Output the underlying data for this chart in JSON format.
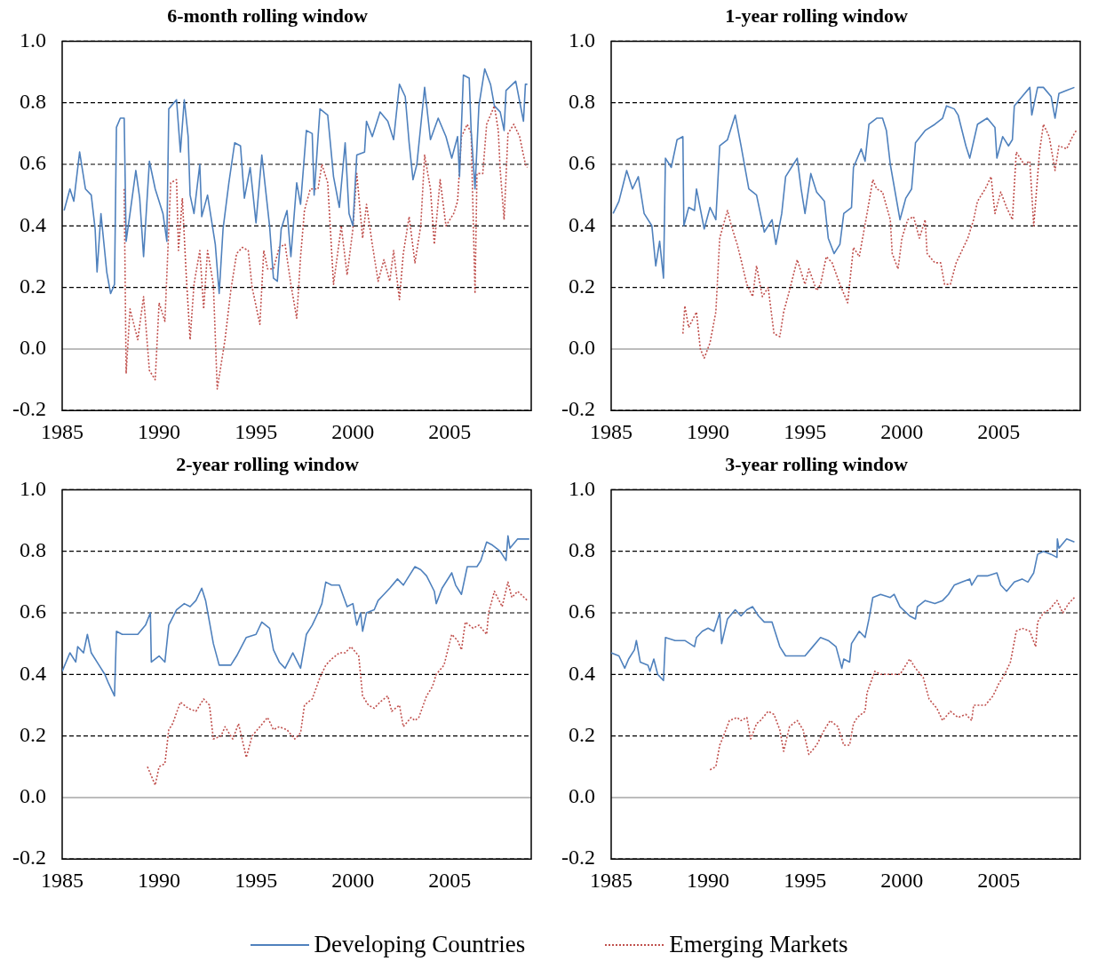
{
  "chart_data": [
    {
      "type": "line",
      "title": "6-month rolling window",
      "xlim": [
        1985,
        2009.2
      ],
      "xticks": [
        1985,
        1990,
        1995,
        2000,
        2005
      ],
      "ylim": [
        -0.2,
        1.0
      ],
      "yticks": [
        {
          "value": -0.2,
          "label": "-0.2"
        },
        {
          "value": 0,
          "label": "0.0"
        },
        {
          "value": 0.2,
          "label": "0.2"
        },
        {
          "value": 0.4,
          "label": "0.4"
        },
        {
          "value": 0.6,
          "label": "0.6"
        },
        {
          "value": 0.8,
          "label": "0.8"
        },
        {
          "value": 1,
          "label": "1.0"
        }
      ],
      "grid": "y",
      "marker": "none",
      "legend": "bottom",
      "series": [
        {
          "name": "Developing Countries",
          "line_style": "solid",
          "color": "#4f81bd",
          "x": [
            1985.1,
            1985.4,
            1985.6,
            1985.9,
            1986.2,
            1986.5,
            1986.7,
            1986.8,
            1987.0,
            1987.3,
            1987.5,
            1987.7,
            1987.8,
            1988.0,
            1988.2,
            1988.3,
            1988.5,
            1988.8,
            1989.0,
            1989.2,
            1989.5,
            1989.8,
            1990.2,
            1990.4,
            1990.5,
            1990.9,
            1991.1,
            1991.3,
            1991.5,
            1991.6,
            1991.8,
            1992.1,
            1992.2,
            1992.5,
            1992.9,
            1993.1,
            1993.3,
            1993.6,
            1993.9,
            1994.2,
            1994.4,
            1994.7,
            1995.0,
            1995.3,
            1995.7,
            1995.9,
            1996.1,
            1996.3,
            1996.6,
            1996.8,
            1997.1,
            1997.3,
            1997.6,
            1997.9,
            1998.0,
            1998.3,
            1998.7,
            1999.0,
            1999.3,
            1999.6,
            1999.8,
            2000.0,
            2000.2,
            2000.6,
            2000.7,
            2001.0,
            2001.4,
            2001.8,
            2002.1,
            2002.4,
            2002.7,
            2002.9,
            2003.1,
            2003.3,
            2003.7,
            2004.0,
            2004.4,
            2004.8,
            2005.1,
            2005.4,
            2005.5,
            2005.7,
            2006.0,
            2006.1,
            2006.3,
            2006.5,
            2006.8,
            2007.1,
            2007.3,
            2007.6,
            2007.8,
            2007.9,
            2008.4,
            2008.8,
            2008.9,
            2009.0
          ],
          "values": [
            0.45,
            0.52,
            0.48,
            0.64,
            0.52,
            0.5,
            0.39,
            0.25,
            0.44,
            0.25,
            0.18,
            0.21,
            0.72,
            0.75,
            0.75,
            0.35,
            0.44,
            0.58,
            0.49,
            0.3,
            0.61,
            0.52,
            0.44,
            0.35,
            0.78,
            0.81,
            0.64,
            0.81,
            0.69,
            0.5,
            0.44,
            0.6,
            0.43,
            0.5,
            0.34,
            0.18,
            0.39,
            0.54,
            0.67,
            0.66,
            0.49,
            0.59,
            0.41,
            0.63,
            0.4,
            0.23,
            0.22,
            0.39,
            0.45,
            0.3,
            0.54,
            0.47,
            0.71,
            0.7,
            0.5,
            0.78,
            0.76,
            0.56,
            0.46,
            0.67,
            0.44,
            0.4,
            0.63,
            0.64,
            0.74,
            0.69,
            0.77,
            0.74,
            0.68,
            0.86,
            0.82,
            0.67,
            0.55,
            0.6,
            0.85,
            0.68,
            0.75,
            0.69,
            0.62,
            0.69,
            0.56,
            0.89,
            0.88,
            0.71,
            0.52,
            0.79,
            0.91,
            0.86,
            0.79,
            0.77,
            0.71,
            0.84,
            0.87,
            0.74,
            0.86,
            0.86
          ]
        },
        {
          "name": "Emerging Markets",
          "line_style": "dotted",
          "color": "#c0504d",
          "x": [
            1988.2,
            1988.3,
            1988.5,
            1988.9,
            1989.2,
            1989.5,
            1989.8,
            1990.0,
            1990.3,
            1990.6,
            1990.9,
            1991.0,
            1991.2,
            1991.4,
            1991.6,
            1991.8,
            1992.1,
            1992.3,
            1992.5,
            1992.8,
            1993.0,
            1993.2,
            1993.4,
            1993.7,
            1994.0,
            1994.3,
            1994.6,
            1994.8,
            1995.2,
            1995.4,
            1995.6,
            1995.9,
            1996.2,
            1996.5,
            1996.8,
            1997.1,
            1997.3,
            1997.5,
            1997.8,
            1998.2,
            1998.4,
            1998.7,
            1999.0,
            1999.4,
            1999.7,
            2000.0,
            2000.2,
            2000.5,
            2000.7,
            2001.0,
            2001.3,
            2001.6,
            2001.9,
            2002.1,
            2002.4,
            2002.6,
            2002.9,
            2003.2,
            2003.5,
            2003.7,
            2004.0,
            2004.2,
            2004.5,
            2004.8,
            2005.2,
            2005.4,
            2005.6,
            2005.9,
            2006.1,
            2006.3,
            2006.4,
            2006.7,
            2006.9,
            2007.3,
            2007.5,
            2007.6,
            2007.8,
            2008.0,
            2008.3,
            2008.6,
            2008.9,
            2009.0
          ],
          "values": [
            0.52,
            -0.08,
            0.13,
            0.03,
            0.17,
            -0.07,
            -0.1,
            0.15,
            0.09,
            0.54,
            0.55,
            0.32,
            0.49,
            0.24,
            0.03,
            0.21,
            0.32,
            0.13,
            0.32,
            0.21,
            -0.13,
            -0.05,
            0.03,
            0.19,
            0.31,
            0.33,
            0.32,
            0.2,
            0.08,
            0.32,
            0.26,
            0.26,
            0.33,
            0.34,
            0.21,
            0.1,
            0.3,
            0.45,
            0.52,
            0.52,
            0.6,
            0.54,
            0.21,
            0.4,
            0.24,
            0.39,
            0.57,
            0.36,
            0.47,
            0.34,
            0.22,
            0.29,
            0.22,
            0.32,
            0.16,
            0.31,
            0.43,
            0.28,
            0.4,
            0.63,
            0.52,
            0.34,
            0.55,
            0.4,
            0.44,
            0.48,
            0.69,
            0.73,
            0.7,
            0.18,
            0.57,
            0.57,
            0.73,
            0.79,
            0.71,
            0.58,
            0.42,
            0.7,
            0.73,
            0.69,
            0.6,
            0.59
          ]
        }
      ]
    },
    {
      "type": "line",
      "title": "1-year rolling window",
      "xlim": [
        1985,
        2009.2
      ],
      "xticks": [
        1985,
        1990,
        1995,
        2000,
        2005
      ],
      "ylim": [
        -0.2,
        1.0
      ],
      "yticks": [
        {
          "value": -0.2,
          "label": "-0.2"
        },
        {
          "value": 0,
          "label": "0.0"
        },
        {
          "value": 0.2,
          "label": "0.2"
        },
        {
          "value": 0.4,
          "label": "0.4"
        },
        {
          "value": 0.6,
          "label": "0.6"
        },
        {
          "value": 0.8,
          "label": "0.8"
        },
        {
          "value": 1,
          "label": "1.0"
        }
      ],
      "grid": "y",
      "marker": "none",
      "series": [
        {
          "name": "Developing Countries",
          "line_style": "solid",
          "color": "#4f81bd",
          "x": [
            1985.1,
            1985.4,
            1985.8,
            1986.1,
            1986.4,
            1986.7,
            1987.1,
            1987.3,
            1987.5,
            1987.7,
            1987.8,
            1988.1,
            1988.4,
            1988.7,
            1988.75,
            1989.0,
            1989.3,
            1989.4,
            1989.8,
            1990.1,
            1990.4,
            1990.6,
            1991.0,
            1991.3,
            1991.4,
            1991.7,
            1992.1,
            1992.5,
            1992.9,
            1993.3,
            1993.5,
            1993.8,
            1994.0,
            1994.4,
            1994.6,
            1994.8,
            1995.0,
            1995.3,
            1995.6,
            1996.0,
            1996.2,
            1996.5,
            1996.8,
            1997.0,
            1997.4,
            1997.5,
            1997.9,
            1998.1,
            1998.3,
            1998.7,
            1999.0,
            1999.2,
            1999.4,
            1999.9,
            2000.2,
            2000.5,
            2000.7,
            2001.2,
            2001.7,
            2002.1,
            2002.3,
            2002.7,
            2002.9,
            2003.3,
            2003.5,
            2003.9,
            2004.4,
            2004.8,
            2004.9,
            2005.2,
            2005.5,
            2005.7,
            2005.8,
            2006.2,
            2006.6,
            2006.7,
            2007.0,
            2007.3,
            2007.7,
            2007.9,
            2008.1,
            2008.5,
            2008.9
          ],
          "values": [
            0.44,
            0.48,
            0.58,
            0.52,
            0.56,
            0.44,
            0.4,
            0.27,
            0.35,
            0.23,
            0.62,
            0.59,
            0.68,
            0.69,
            0.4,
            0.46,
            0.45,
            0.52,
            0.39,
            0.46,
            0.42,
            0.66,
            0.68,
            0.74,
            0.76,
            0.66,
            0.52,
            0.5,
            0.38,
            0.42,
            0.34,
            0.44,
            0.56,
            0.6,
            0.62,
            0.52,
            0.44,
            0.57,
            0.51,
            0.48,
            0.36,
            0.31,
            0.34,
            0.44,
            0.46,
            0.59,
            0.65,
            0.61,
            0.73,
            0.75,
            0.75,
            0.71,
            0.6,
            0.42,
            0.49,
            0.52,
            0.67,
            0.71,
            0.73,
            0.75,
            0.79,
            0.78,
            0.76,
            0.66,
            0.62,
            0.73,
            0.75,
            0.72,
            0.62,
            0.69,
            0.66,
            0.68,
            0.79,
            0.82,
            0.85,
            0.76,
            0.85,
            0.85,
            0.82,
            0.75,
            0.83,
            0.84,
            0.85
          ]
        },
        {
          "name": "Emerging Markets",
          "line_style": "dotted",
          "color": "#c0504d",
          "x": [
            1988.7,
            1988.8,
            1989.0,
            1989.4,
            1989.6,
            1989.8,
            1990.1,
            1990.4,
            1990.6,
            1991.0,
            1991.2,
            1991.5,
            1991.7,
            1992.0,
            1992.3,
            1992.5,
            1992.8,
            1993.1,
            1993.4,
            1993.7,
            1993.9,
            1994.2,
            1994.6,
            1995.0,
            1995.2,
            1995.6,
            1995.8,
            1996.1,
            1996.4,
            1996.8,
            1997.2,
            1997.5,
            1997.8,
            1998.2,
            1998.5,
            1998.7,
            1999.0,
            1999.4,
            1999.5,
            1999.8,
            2000.0,
            2000.3,
            2000.6,
            2000.9,
            2001.2,
            2001.3,
            2001.7,
            2002.0,
            2002.2,
            2002.5,
            2002.8,
            2003.1,
            2003.4,
            2003.7,
            2003.9,
            2004.3,
            2004.6,
            2004.8,
            2005.1,
            2005.4,
            2005.7,
            2005.9,
            2006.3,
            2006.6,
            2006.8,
            2007.1,
            2007.3,
            2007.6,
            2007.9,
            2008.1,
            2008.5,
            2008.8,
            2009.0
          ],
          "values": [
            0.05,
            0.14,
            0.07,
            0.12,
            0.0,
            -0.03,
            0.02,
            0.12,
            0.36,
            0.45,
            0.4,
            0.34,
            0.29,
            0.21,
            0.17,
            0.27,
            0.17,
            0.2,
            0.05,
            0.04,
            0.12,
            0.19,
            0.29,
            0.21,
            0.26,
            0.19,
            0.21,
            0.3,
            0.28,
            0.21,
            0.15,
            0.33,
            0.3,
            0.44,
            0.55,
            0.52,
            0.51,
            0.42,
            0.31,
            0.26,
            0.36,
            0.42,
            0.43,
            0.36,
            0.42,
            0.31,
            0.28,
            0.28,
            0.21,
            0.21,
            0.28,
            0.32,
            0.36,
            0.42,
            0.48,
            0.52,
            0.56,
            0.44,
            0.51,
            0.46,
            0.42,
            0.64,
            0.6,
            0.61,
            0.4,
            0.64,
            0.73,
            0.69,
            0.58,
            0.66,
            0.65,
            0.69,
            0.71
          ]
        }
      ]
    },
    {
      "type": "line",
      "title": "2-year rolling window",
      "xlim": [
        1985,
        2009.2
      ],
      "xticks": [
        1985,
        1990,
        1995,
        2000,
        2005
      ],
      "ylim": [
        -0.2,
        1.0
      ],
      "yticks": [
        {
          "value": -0.2,
          "label": "-0.2"
        },
        {
          "value": 0,
          "label": "0.0"
        },
        {
          "value": 0.2,
          "label": "0.2"
        },
        {
          "value": 0.4,
          "label": "0.4"
        },
        {
          "value": 0.6,
          "label": "0.6"
        },
        {
          "value": 0.8,
          "label": "0.8"
        },
        {
          "value": 1,
          "label": "1.0"
        }
      ],
      "grid": "y",
      "marker": "none",
      "series": [
        {
          "name": "Developing Countries",
          "line_style": "solid",
          "color": "#4f81bd",
          "x": [
            1985.0,
            1985.4,
            1985.7,
            1985.8,
            1986.1,
            1986.3,
            1986.5,
            1986.9,
            1987.2,
            1987.4,
            1987.7,
            1987.8,
            1988.1,
            1988.6,
            1988.9,
            1989.3,
            1989.55,
            1989.6,
            1990.0,
            1990.3,
            1990.5,
            1990.9,
            1991.3,
            1991.6,
            1991.9,
            1992.2,
            1992.4,
            1992.6,
            1992.8,
            1993.1,
            1993.7,
            1994.0,
            1994.5,
            1995.0,
            1995.3,
            1995.7,
            1995.9,
            1996.2,
            1996.5,
            1996.9,
            1997.3,
            1997.6,
            1997.9,
            1998.2,
            1998.4,
            1998.6,
            1998.9,
            1999.3,
            1999.7,
            2000.0,
            2000.2,
            2000.4,
            2000.5,
            2000.7,
            2001.1,
            2001.3,
            2001.6,
            2001.9,
            2002.3,
            2002.6,
            2002.9,
            2003.2,
            2003.5,
            2003.8,
            2004.2,
            2004.3,
            2004.6,
            2005.1,
            2005.3,
            2005.6,
            2005.9,
            2006.4,
            2006.6,
            2006.9,
            2007.2,
            2007.6,
            2007.9,
            2008.0,
            2008.1,
            2008.5,
            2009.1
          ],
          "values": [
            0.41,
            0.47,
            0.44,
            0.49,
            0.47,
            0.53,
            0.47,
            0.43,
            0.4,
            0.37,
            0.33,
            0.54,
            0.53,
            0.53,
            0.53,
            0.56,
            0.6,
            0.44,
            0.46,
            0.44,
            0.56,
            0.61,
            0.63,
            0.62,
            0.64,
            0.68,
            0.64,
            0.57,
            0.5,
            0.43,
            0.43,
            0.46,
            0.52,
            0.53,
            0.57,
            0.55,
            0.48,
            0.44,
            0.42,
            0.47,
            0.42,
            0.53,
            0.56,
            0.6,
            0.63,
            0.7,
            0.69,
            0.69,
            0.62,
            0.63,
            0.56,
            0.6,
            0.54,
            0.6,
            0.61,
            0.64,
            0.66,
            0.68,
            0.71,
            0.69,
            0.72,
            0.75,
            0.74,
            0.72,
            0.67,
            0.63,
            0.68,
            0.73,
            0.69,
            0.66,
            0.75,
            0.75,
            0.77,
            0.83,
            0.82,
            0.8,
            0.77,
            0.85,
            0.81,
            0.84,
            0.84
          ]
        },
        {
          "name": "Emerging Markets",
          "line_style": "dotted",
          "color": "#c0504d",
          "x": [
            1989.4,
            1989.6,
            1989.8,
            1990.0,
            1990.3,
            1990.5,
            1990.7,
            1991.1,
            1991.5,
            1991.9,
            1992.3,
            1992.6,
            1992.8,
            1993.2,
            1993.4,
            1993.8,
            1994.1,
            1994.5,
            1994.8,
            1995.2,
            1995.6,
            1995.9,
            1996.2,
            1996.6,
            1997.0,
            1997.3,
            1997.5,
            1997.9,
            1998.3,
            1998.6,
            1998.9,
            1999.3,
            1999.6,
            1999.9,
            2000.3,
            2000.5,
            2000.8,
            2001.1,
            2001.4,
            2001.8,
            2002.0,
            2002.4,
            2002.6,
            2003.0,
            2003.2,
            2003.4,
            2003.8,
            2004.1,
            2004.3,
            2004.7,
            2005.1,
            2005.4,
            2005.6,
            2005.8,
            2006.2,
            2006.5,
            2006.9,
            2007.0,
            2007.3,
            2007.7,
            2008.0,
            2008.2,
            2008.5,
            2009.0
          ],
          "values": [
            0.1,
            0.07,
            0.04,
            0.1,
            0.11,
            0.22,
            0.24,
            0.31,
            0.29,
            0.28,
            0.32,
            0.3,
            0.19,
            0.2,
            0.23,
            0.19,
            0.24,
            0.13,
            0.2,
            0.23,
            0.26,
            0.22,
            0.23,
            0.22,
            0.19,
            0.21,
            0.3,
            0.32,
            0.39,
            0.43,
            0.45,
            0.47,
            0.47,
            0.49,
            0.46,
            0.33,
            0.3,
            0.29,
            0.31,
            0.33,
            0.28,
            0.3,
            0.23,
            0.26,
            0.25,
            0.26,
            0.33,
            0.36,
            0.4,
            0.43,
            0.53,
            0.51,
            0.48,
            0.57,
            0.55,
            0.56,
            0.53,
            0.6,
            0.67,
            0.62,
            0.7,
            0.65,
            0.67,
            0.64
          ]
        }
      ]
    },
    {
      "type": "line",
      "title": "3-year rolling window",
      "xlim": [
        1985,
        2009.2
      ],
      "xticks": [
        1985,
        1990,
        1995,
        2000,
        2005
      ],
      "ylim": [
        -0.2,
        1.0
      ],
      "yticks": [
        {
          "value": -0.2,
          "label": "-0.2"
        },
        {
          "value": 0,
          "label": "0.0"
        },
        {
          "value": 0.2,
          "label": "0.2"
        },
        {
          "value": 0.4,
          "label": "0.4"
        },
        {
          "value": 0.6,
          "label": "0.6"
        },
        {
          "value": 0.8,
          "label": "0.8"
        },
        {
          "value": 1,
          "label": "1.0"
        }
      ],
      "grid": "y",
      "marker": "none",
      "series": [
        {
          "name": "Developing Countries",
          "line_style": "solid",
          "color": "#4f81bd",
          "x": [
            1985.0,
            1985.4,
            1985.7,
            1985.9,
            1986.2,
            1986.3,
            1986.5,
            1986.9,
            1987.0,
            1987.2,
            1987.4,
            1987.7,
            1987.8,
            1988.3,
            1988.8,
            1989.3,
            1989.4,
            1989.7,
            1990.0,
            1990.3,
            1990.6,
            1990.7,
            1991.0,
            1991.4,
            1991.7,
            1992.0,
            1992.3,
            1992.6,
            1992.9,
            1993.3,
            1993.5,
            1993.7,
            1994.0,
            1994.5,
            1995.0,
            1995.4,
            1995.8,
            1996.2,
            1996.6,
            1996.9,
            1997.0,
            1997.3,
            1997.4,
            1997.8,
            1998.1,
            1998.3,
            1998.5,
            1998.9,
            1999.4,
            1999.6,
            1999.9,
            2000.4,
            2000.7,
            2000.8,
            2001.2,
            2001.7,
            2002.1,
            2002.4,
            2002.7,
            2003.1,
            2003.5,
            2003.6,
            2003.9,
            2004.4,
            2004.9,
            2005.1,
            2005.4,
            2005.8,
            2006.2,
            2006.5,
            2006.8,
            2007.0,
            2007.3,
            2007.7,
            2008.0,
            2008.02,
            2008.1,
            2008.5,
            2008.9
          ],
          "values": [
            0.47,
            0.46,
            0.42,
            0.45,
            0.48,
            0.51,
            0.44,
            0.43,
            0.41,
            0.45,
            0.4,
            0.38,
            0.52,
            0.51,
            0.51,
            0.49,
            0.52,
            0.54,
            0.55,
            0.54,
            0.6,
            0.5,
            0.58,
            0.61,
            0.59,
            0.61,
            0.62,
            0.59,
            0.57,
            0.57,
            0.53,
            0.49,
            0.46,
            0.46,
            0.46,
            0.49,
            0.52,
            0.51,
            0.49,
            0.42,
            0.45,
            0.44,
            0.5,
            0.54,
            0.52,
            0.58,
            0.65,
            0.66,
            0.65,
            0.66,
            0.62,
            0.59,
            0.58,
            0.62,
            0.64,
            0.63,
            0.64,
            0.66,
            0.69,
            0.7,
            0.71,
            0.69,
            0.72,
            0.72,
            0.73,
            0.69,
            0.67,
            0.7,
            0.71,
            0.7,
            0.73,
            0.79,
            0.8,
            0.79,
            0.78,
            0.84,
            0.81,
            0.84,
            0.83
          ]
        },
        {
          "name": "Emerging Markets",
          "line_style": "dotted",
          "color": "#c0504d",
          "x": [
            1990.1,
            1990.4,
            1990.6,
            1990.8,
            1991.1,
            1991.5,
            1991.7,
            1992.0,
            1992.2,
            1992.5,
            1992.7,
            1993.1,
            1993.4,
            1993.7,
            1993.9,
            1994.2,
            1994.6,
            1994.9,
            1995.2,
            1995.6,
            1996.0,
            1996.3,
            1996.7,
            1997.0,
            1997.3,
            1997.5,
            1997.7,
            1998.1,
            1998.2,
            1998.6,
            1998.9,
            1999.4,
            1999.9,
            2000.4,
            2000.7,
            2001.1,
            2001.4,
            2001.8,
            2002.1,
            2002.5,
            2002.9,
            2003.3,
            2003.6,
            2003.7,
            2004.0,
            2004.3,
            2004.7,
            2005.0,
            2005.3,
            2005.6,
            2005.9,
            2006.2,
            2006.6,
            2006.9,
            2007.0,
            2007.3,
            2007.6,
            2008.0,
            2008.3,
            2008.6,
            2008.9
          ],
          "values": [
            0.09,
            0.1,
            0.17,
            0.2,
            0.25,
            0.26,
            0.25,
            0.26,
            0.19,
            0.24,
            0.25,
            0.28,
            0.27,
            0.22,
            0.15,
            0.23,
            0.25,
            0.22,
            0.14,
            0.17,
            0.22,
            0.25,
            0.23,
            0.17,
            0.17,
            0.24,
            0.26,
            0.28,
            0.34,
            0.41,
            0.4,
            0.4,
            0.4,
            0.45,
            0.42,
            0.39,
            0.32,
            0.29,
            0.25,
            0.28,
            0.26,
            0.27,
            0.25,
            0.3,
            0.3,
            0.3,
            0.33,
            0.37,
            0.4,
            0.44,
            0.54,
            0.55,
            0.54,
            0.49,
            0.57,
            0.6,
            0.61,
            0.64,
            0.6,
            0.63,
            0.65
          ]
        }
      ]
    }
  ]
}
